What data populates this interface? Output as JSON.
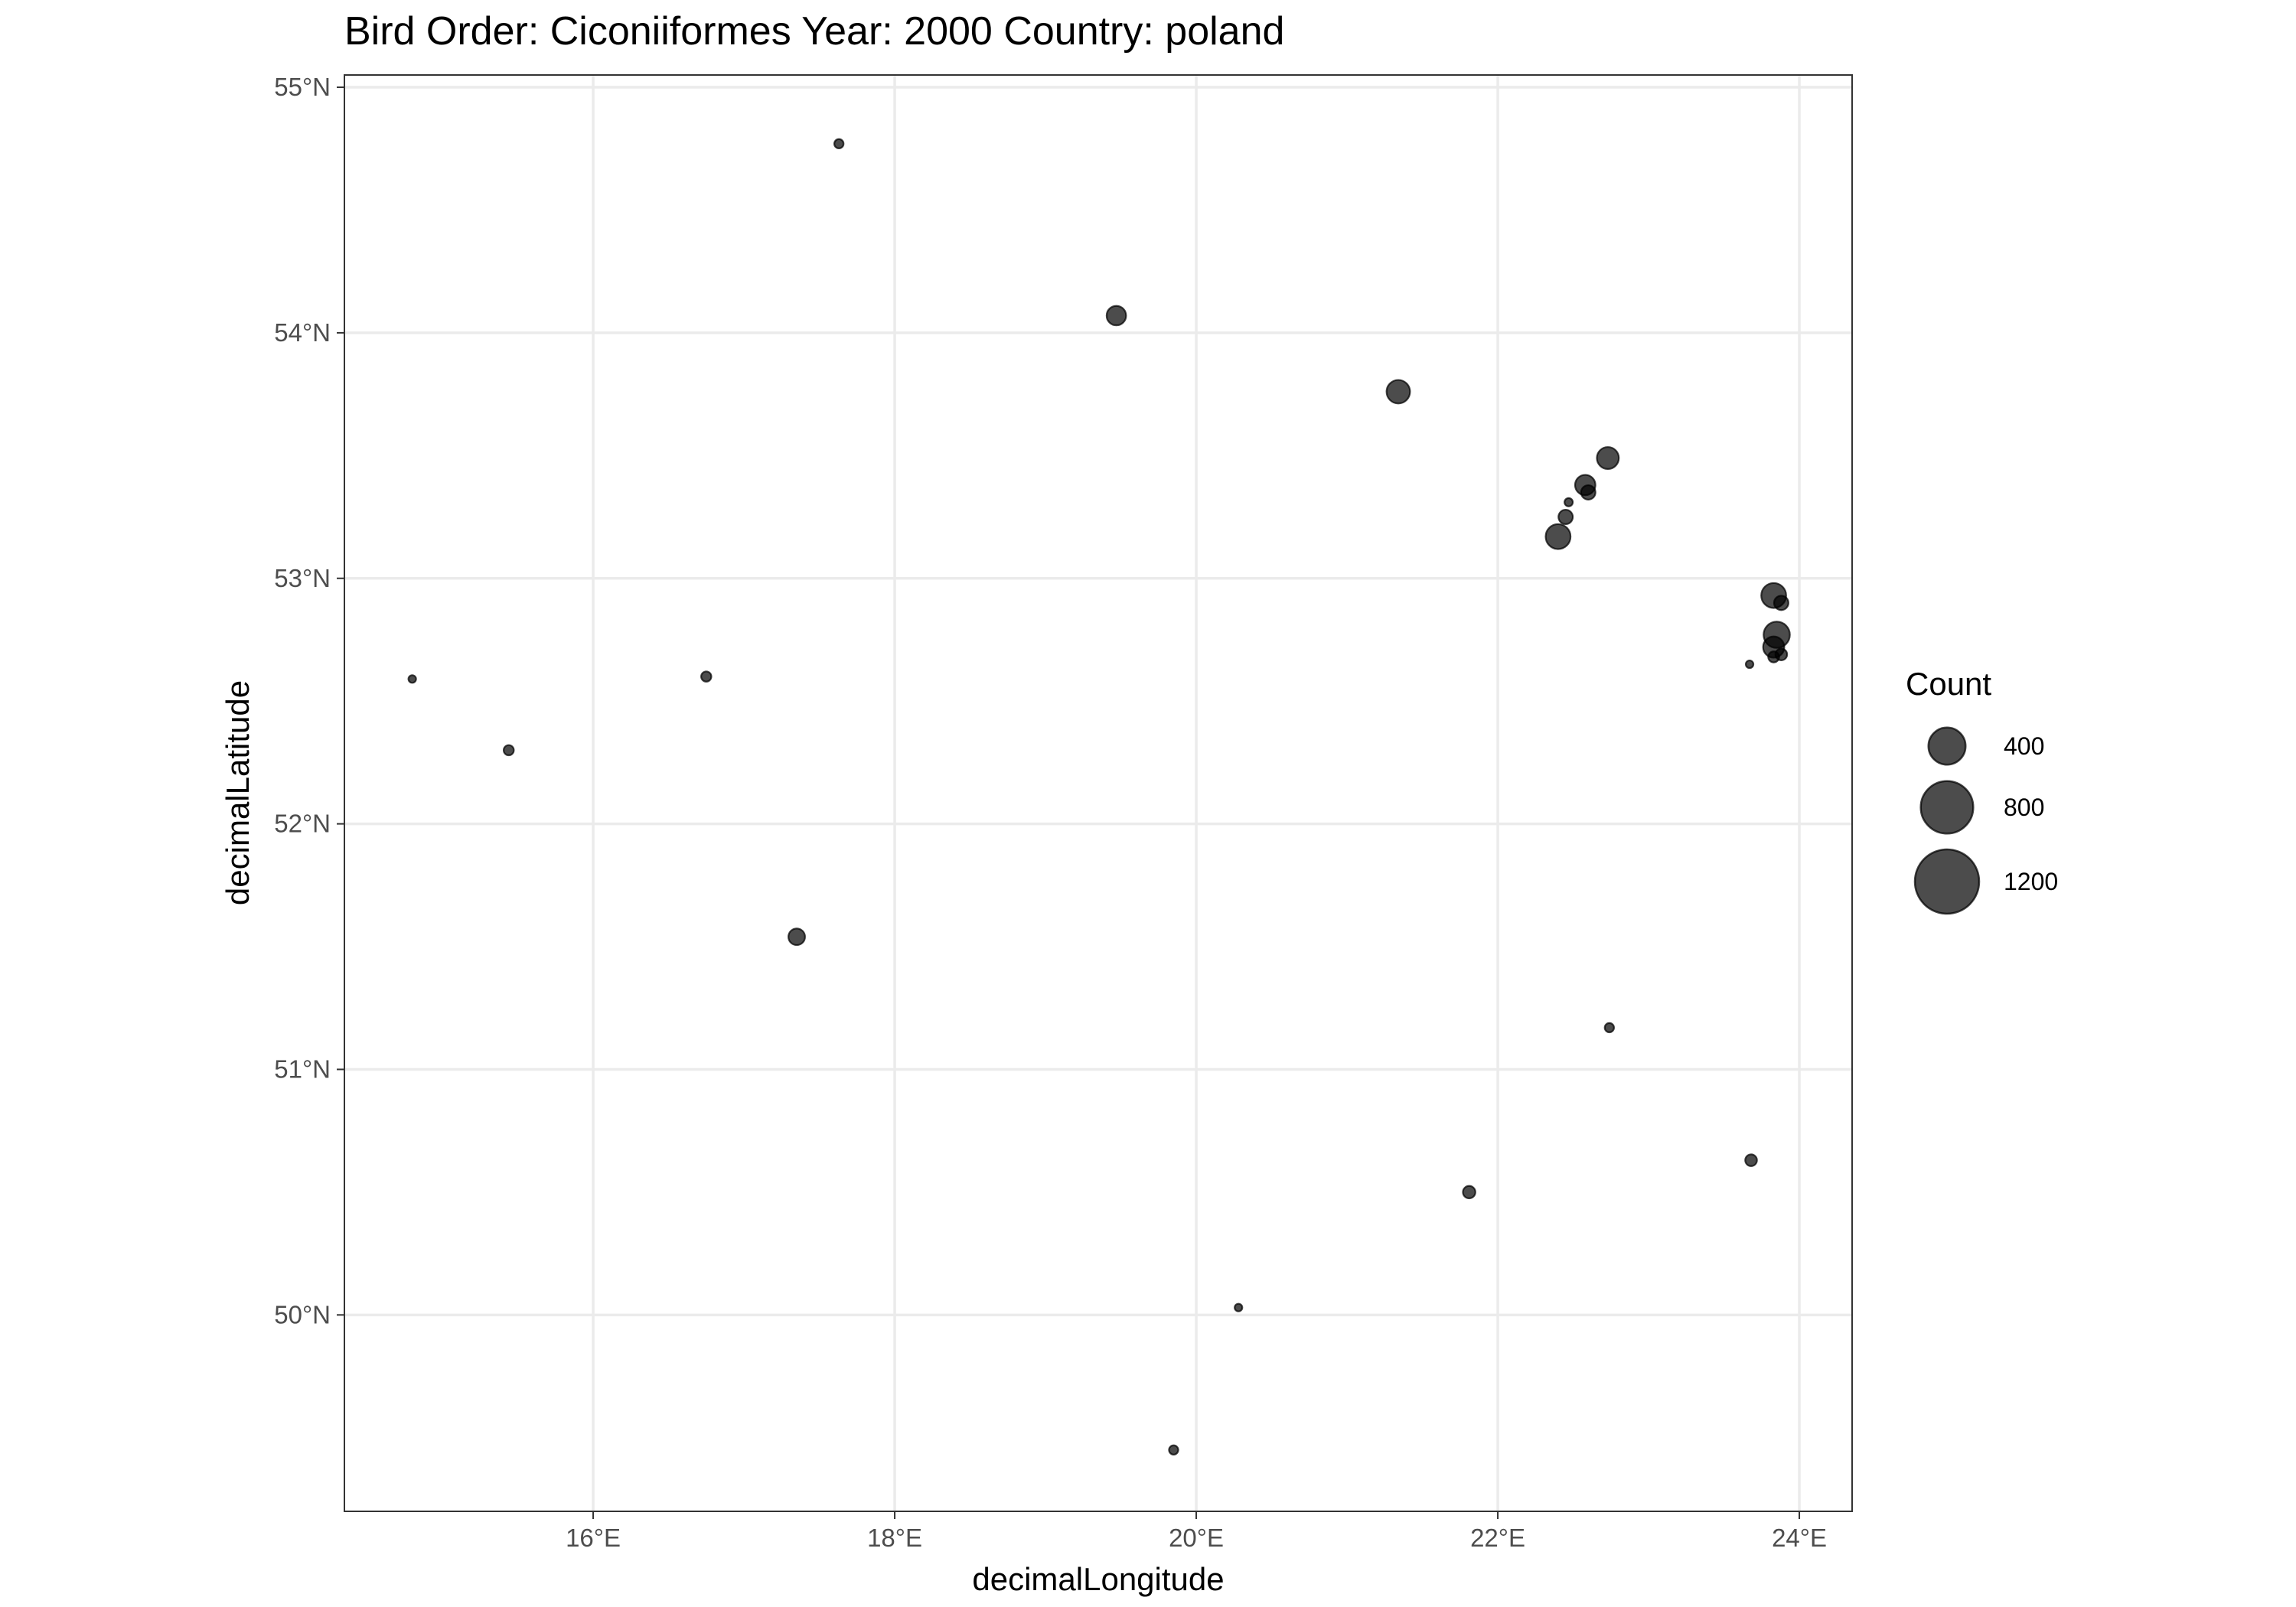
{
  "chart_data": {
    "type": "scatter",
    "title": "Bird Order: Ciconiiformes Year: 2000 Country: poland",
    "xlabel": "decimalLongitude",
    "ylabel": "decimalLatitude",
    "xlim": [
      14.35,
      24.35
    ],
    "ylim": [
      49.2,
      55.05
    ],
    "x_ticks": [
      16,
      18,
      20,
      22,
      24
    ],
    "x_tick_labels": [
      "16°E",
      "18°E",
      "20°E",
      "22°E",
      "24°E"
    ],
    "y_ticks": [
      50,
      51,
      52,
      53,
      54,
      55
    ],
    "y_tick_labels": [
      "50°N",
      "51°N",
      "52°N",
      "53°N",
      "54°N",
      "55°N"
    ],
    "grid": true,
    "point_color": "#000000",
    "point_alpha": 0.7,
    "size_legend": {
      "title": "Count",
      "values": [
        400,
        800,
        1200
      ],
      "labels": [
        "400",
        "800",
        "1200"
      ],
      "placement": "right"
    },
    "points": [
      {
        "x": 17.63,
        "y": 54.77,
        "count": 25
      },
      {
        "x": 19.47,
        "y": 54.07,
        "count": 110
      },
      {
        "x": 21.34,
        "y": 53.76,
        "count": 160
      },
      {
        "x": 22.73,
        "y": 53.49,
        "count": 140
      },
      {
        "x": 22.58,
        "y": 53.38,
        "count": 120
      },
      {
        "x": 22.6,
        "y": 53.35,
        "count": 60
      },
      {
        "x": 22.47,
        "y": 53.31,
        "count": 20
      },
      {
        "x": 22.45,
        "y": 53.25,
        "count": 60
      },
      {
        "x": 22.4,
        "y": 53.17,
        "count": 180
      },
      {
        "x": 23.83,
        "y": 52.93,
        "count": 180
      },
      {
        "x": 23.88,
        "y": 52.9,
        "count": 60
      },
      {
        "x": 23.85,
        "y": 52.77,
        "count": 200
      },
      {
        "x": 23.83,
        "y": 52.72,
        "count": 130
      },
      {
        "x": 23.88,
        "y": 52.69,
        "count": 40
      },
      {
        "x": 23.83,
        "y": 52.68,
        "count": 35
      },
      {
        "x": 23.67,
        "y": 52.65,
        "count": 15
      },
      {
        "x": 14.8,
        "y": 52.59,
        "count": 15
      },
      {
        "x": 16.75,
        "y": 52.6,
        "count": 30
      },
      {
        "x": 15.44,
        "y": 52.3,
        "count": 30
      },
      {
        "x": 17.35,
        "y": 51.54,
        "count": 80
      },
      {
        "x": 22.74,
        "y": 51.17,
        "count": 25
      },
      {
        "x": 23.68,
        "y": 50.63,
        "count": 40
      },
      {
        "x": 21.81,
        "y": 50.5,
        "count": 45
      },
      {
        "x": 20.28,
        "y": 50.03,
        "count": 10
      },
      {
        "x": 19.85,
        "y": 49.45,
        "count": 25
      }
    ]
  }
}
